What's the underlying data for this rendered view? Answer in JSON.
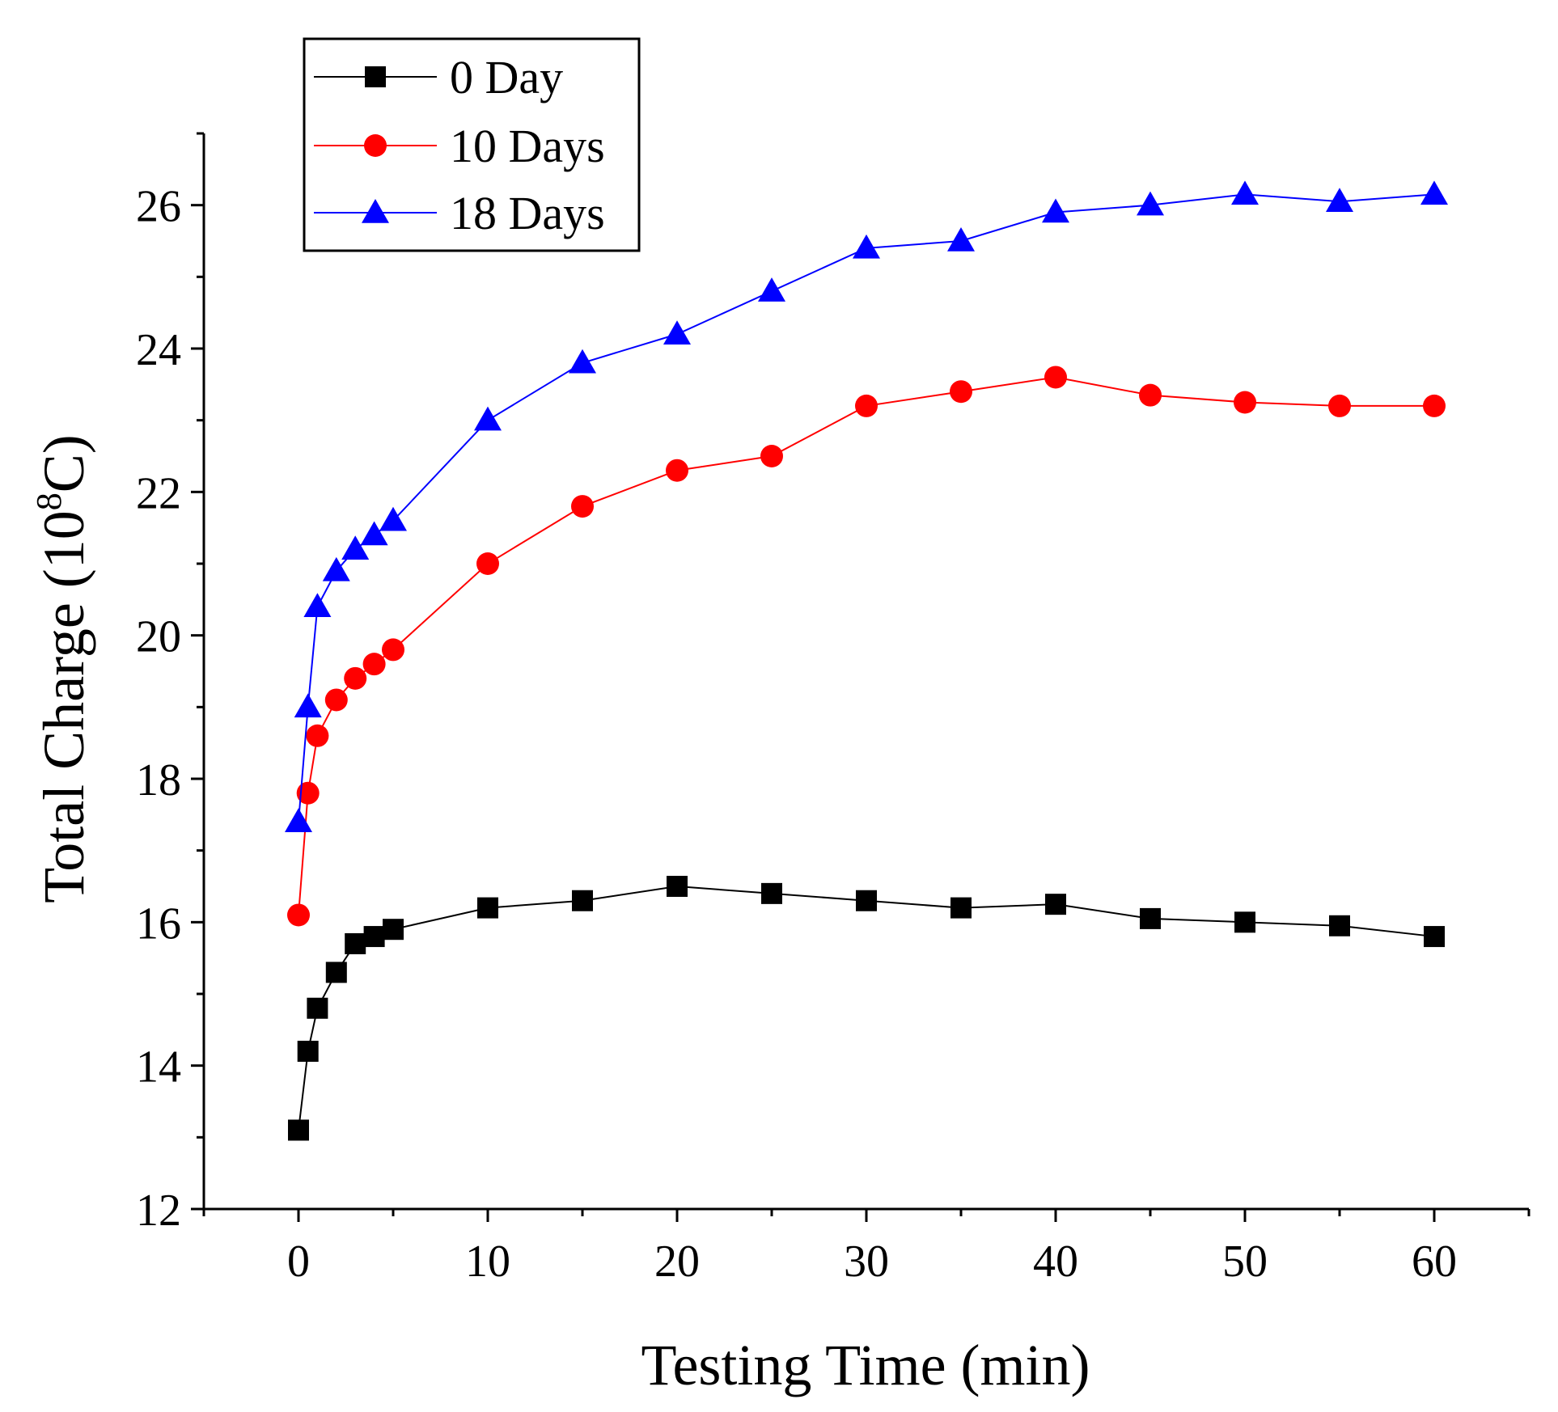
{
  "chart_data": {
    "type": "line",
    "title": "",
    "xlabel": "Testing Time (min)",
    "ylabel_main": "Total Charge (10",
    "ylabel_sup": "8",
    "ylabel_end": "C)",
    "xlim": [
      -5,
      65
    ],
    "ylim": [
      12,
      27
    ],
    "xticks": [
      0,
      10,
      20,
      30,
      40,
      50,
      60
    ],
    "yticks": [
      12,
      14,
      16,
      18,
      20,
      22,
      24,
      26
    ],
    "legend_position": "top-left",
    "x": [
      0,
      0.5,
      1,
      2,
      3,
      4,
      5,
      10,
      15,
      20,
      25,
      30,
      35,
      40,
      45,
      50,
      55,
      60
    ],
    "series": [
      {
        "name": "0 Day",
        "color": "#000000",
        "marker": "square",
        "values": [
          13.1,
          14.2,
          14.8,
          15.3,
          15.7,
          15.8,
          15.9,
          16.2,
          16.3,
          16.5,
          16.4,
          16.3,
          16.2,
          16.25,
          16.05,
          16.0,
          15.95,
          15.8
        ]
      },
      {
        "name": "10 Days",
        "color": "#ff0000",
        "marker": "circle",
        "values": [
          16.1,
          17.8,
          18.6,
          19.1,
          19.4,
          19.6,
          19.8,
          21.0,
          21.8,
          22.3,
          22.5,
          23.2,
          23.4,
          23.6,
          23.35,
          23.25,
          23.2,
          23.2
        ]
      },
      {
        "name": "18 Days",
        "color": "#0000ff",
        "marker": "triangle",
        "values": [
          17.4,
          19.0,
          20.4,
          20.9,
          21.2,
          21.4,
          21.6,
          23.0,
          23.8,
          24.2,
          24.8,
          25.4,
          25.5,
          25.9,
          26.0,
          26.15,
          26.05,
          26.15
        ]
      }
    ]
  }
}
